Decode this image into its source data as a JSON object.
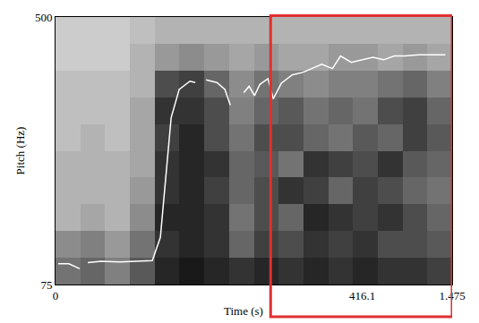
{
  "chart_data": {
    "type": "line",
    "x_label": "Time (s)",
    "y_label": "Pitch (Hz)",
    "xlim": [
      0,
      1.475
    ],
    "ylim": [
      75,
      500
    ],
    "xticks": [
      0,
      1.475
    ],
    "yticks": [
      75,
      500
    ],
    "grid": false,
    "x": [
      0.01,
      0.05,
      0.09,
      0.1,
      0.12,
      0.17,
      0.24,
      0.36,
      0.39,
      0.41,
      0.43,
      0.46,
      0.5,
      0.52,
      0.535,
      0.56,
      0.6,
      0.63,
      0.65,
      0.665,
      0.7,
      0.72,
      0.74,
      0.76,
      0.79,
      0.81,
      0.84,
      0.88,
      0.92,
      0.96,
      0.99,
      1.03,
      1.06,
      1.1,
      1.14,
      1.18,
      1.22,
      1.26,
      1.3,
      1.35,
      1.4,
      1.45
    ],
    "series": [
      {
        "color": "#ffffff",
        "values": [
          108,
          108,
          100,
          null,
          110,
          112,
          111,
          113,
          150,
          250,
          340,
          385,
          398,
          396,
          null,
          400,
          396,
          385,
          360,
          null,
          380,
          390,
          375,
          393,
          402,
          370,
          395,
          408,
          412,
          420,
          425,
          418,
          438,
          428,
          432,
          436,
          432,
          438,
          438,
          440,
          440,
          440
        ]
      }
    ],
    "annotations": [
      {
        "text": "416.1",
        "x": 1.14
      }
    ],
    "highlight": {
      "x0": 0.8,
      "x1": 1.475,
      "color": "#e03030"
    },
    "spectrogram": {
      "x_edges": [
        0,
        0.092,
        0.184,
        0.277,
        0.369,
        0.461,
        0.553,
        0.645,
        0.738,
        0.83,
        0.922,
        1.014,
        1.106,
        1.198,
        1.291,
        1.383,
        1.475
      ],
      "y_edges": [
        75,
        117.5,
        160,
        202.5,
        245,
        287.5,
        330,
        372.5,
        415,
        457.5,
        500
      ],
      "zlim": [
        0,
        1
      ],
      "z": [
        [
          0.55,
          0.6,
          0.5,
          0.65,
          0.85,
          0.9,
          0.85,
          0.8,
          0.85,
          0.8,
          0.85,
          0.8,
          0.85,
          0.8,
          0.8,
          0.75
        ],
        [
          0.45,
          0.5,
          0.4,
          0.55,
          0.8,
          0.85,
          0.8,
          0.6,
          0.75,
          0.7,
          0.8,
          0.75,
          0.8,
          0.7,
          0.7,
          0.65
        ],
        [
          0.3,
          0.35,
          0.3,
          0.45,
          0.85,
          0.85,
          0.8,
          0.55,
          0.7,
          0.6,
          0.85,
          0.8,
          0.75,
          0.8,
          0.7,
          0.6
        ],
        [
          0.3,
          0.3,
          0.3,
          0.4,
          0.8,
          0.85,
          0.75,
          0.6,
          0.7,
          0.8,
          0.75,
          0.6,
          0.75,
          0.7,
          0.6,
          0.55
        ],
        [
          0.3,
          0.3,
          0.3,
          0.35,
          0.8,
          0.85,
          0.8,
          0.6,
          0.65,
          0.55,
          0.8,
          0.75,
          0.7,
          0.8,
          0.65,
          0.6
        ],
        [
          0.25,
          0.3,
          0.25,
          0.35,
          0.75,
          0.85,
          0.7,
          0.55,
          0.7,
          0.7,
          0.6,
          0.55,
          0.65,
          0.6,
          0.75,
          0.65
        ],
        [
          0.25,
          0.25,
          0.25,
          0.35,
          0.8,
          0.8,
          0.7,
          0.5,
          0.6,
          0.65,
          0.55,
          0.6,
          0.55,
          0.7,
          0.75,
          0.6
        ],
        [
          0.25,
          0.25,
          0.25,
          0.3,
          0.7,
          0.75,
          0.6,
          0.45,
          0.55,
          0.5,
          0.45,
          0.5,
          0.5,
          0.55,
          0.6,
          0.5
        ],
        [
          0.2,
          0.2,
          0.2,
          0.3,
          0.4,
          0.45,
          0.4,
          0.35,
          0.4,
          0.35,
          0.35,
          0.4,
          0.4,
          0.35,
          0.4,
          0.35
        ],
        [
          0.2,
          0.2,
          0.2,
          0.25,
          0.3,
          0.3,
          0.3,
          0.3,
          0.3,
          0.3,
          0.3,
          0.3,
          0.3,
          0.3,
          0.3,
          0.3
        ]
      ]
    }
  }
}
